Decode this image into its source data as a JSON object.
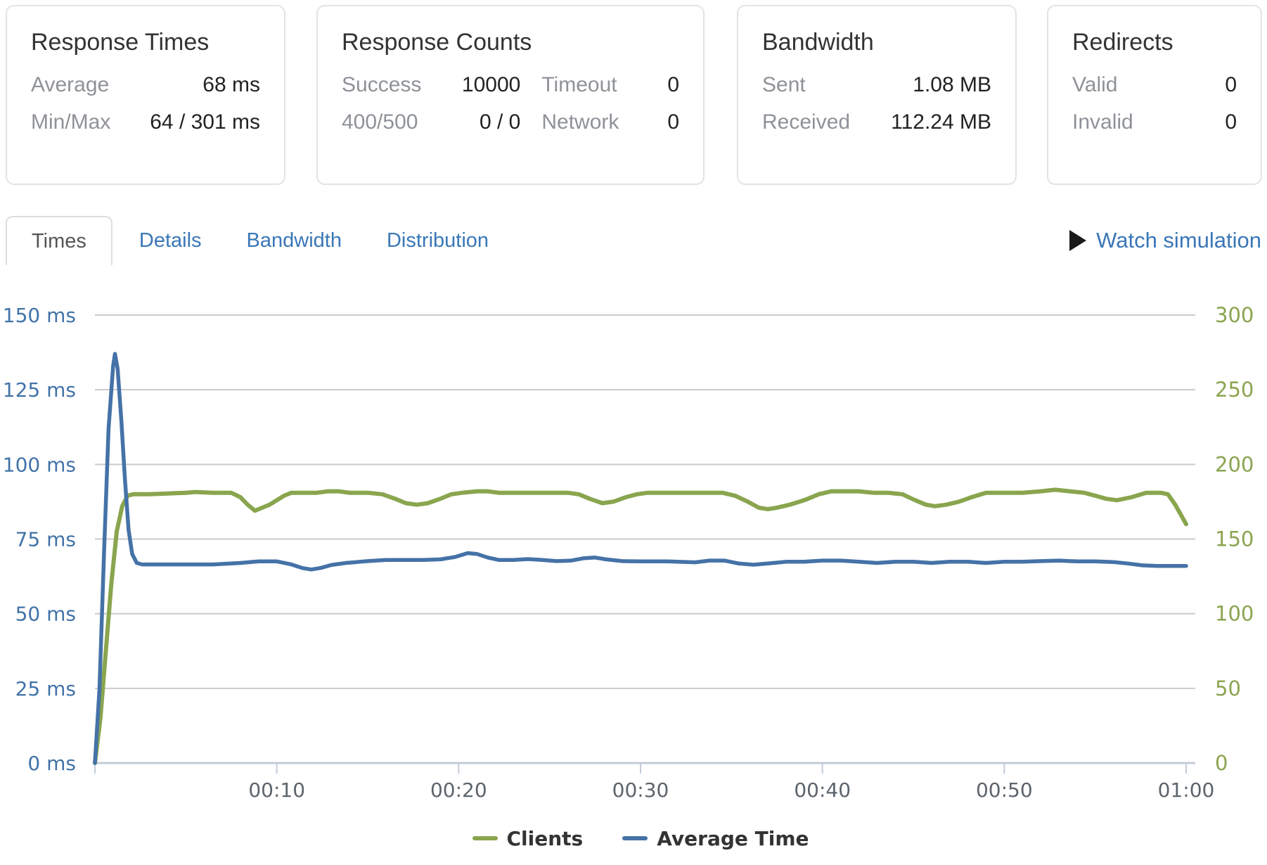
{
  "cards": [
    {
      "title": "Response Times",
      "rows": [
        [
          "Average",
          "68 ms"
        ],
        [
          "Min/Max",
          "64 / 301 ms"
        ]
      ]
    },
    {
      "title": "Response Counts",
      "left_rows": [
        [
          "Success",
          "10000"
        ],
        [
          "400/500",
          "0 / 0"
        ]
      ],
      "right_rows": [
        [
          "Timeout",
          "0"
        ],
        [
          "Network",
          "0"
        ]
      ]
    },
    {
      "title": "Bandwidth",
      "rows": [
        [
          "Sent",
          "1.08 MB"
        ],
        [
          "Received",
          "112.24 MB"
        ]
      ]
    },
    {
      "title": "Redirects",
      "rows": [
        [
          "Valid",
          "0"
        ],
        [
          "Invalid",
          "0"
        ]
      ]
    }
  ],
  "tabs": {
    "active": "Times",
    "items": [
      "Times",
      "Details",
      "Bandwidth",
      "Distribution"
    ],
    "watch_label": "Watch simulation"
  },
  "chart_data": {
    "type": "line",
    "x_range": [
      0,
      60
    ],
    "x_ticks": [
      {
        "minute": 10,
        "label": "00:10"
      },
      {
        "minute": 20,
        "label": "00:20"
      },
      {
        "minute": 30,
        "label": "00:30"
      },
      {
        "minute": 40,
        "label": "00:40"
      },
      {
        "minute": 50,
        "label": "00:50"
      },
      {
        "minute": 60,
        "label": "01:00"
      }
    ],
    "y_left": {
      "max": 150,
      "ticks": [
        0,
        25,
        50,
        75,
        100,
        125,
        150
      ],
      "suffix": " ms",
      "color": "#4273a8"
    },
    "y_right": {
      "max": 300,
      "ticks": [
        0,
        50,
        100,
        150,
        200,
        250,
        300
      ],
      "color": "#8ba450"
    },
    "grid_color": "#cbcbcb",
    "axis_color": "#c2ccd8",
    "x_label_color": "#5d646c",
    "legend_position": "bottom-center",
    "series": [
      {
        "name": "Clients",
        "color": "#89a54e",
        "axis": "right",
        "width": 6,
        "points": [
          [
            0,
            0
          ],
          [
            0.3,
            30
          ],
          [
            0.6,
            75
          ],
          [
            0.9,
            120
          ],
          [
            1.2,
            155
          ],
          [
            1.5,
            172
          ],
          [
            1.8,
            179
          ],
          [
            2.1,
            180
          ],
          [
            3,
            180
          ],
          [
            4,
            180.5
          ],
          [
            5,
            181
          ],
          [
            5.5,
            181.5
          ],
          [
            6.5,
            181
          ],
          [
            7.5,
            181
          ],
          [
            8,
            178
          ],
          [
            8.4,
            173
          ],
          [
            8.8,
            169
          ],
          [
            9.2,
            171
          ],
          [
            9.6,
            173
          ],
          [
            10,
            176
          ],
          [
            10.4,
            179
          ],
          [
            10.8,
            181
          ],
          [
            11.5,
            181
          ],
          [
            12.2,
            181
          ],
          [
            12.8,
            182
          ],
          [
            13.4,
            182
          ],
          [
            14,
            181
          ],
          [
            15,
            181
          ],
          [
            15.8,
            180
          ],
          [
            16.5,
            177
          ],
          [
            17.1,
            174
          ],
          [
            17.7,
            173
          ],
          [
            18.3,
            174
          ],
          [
            19,
            177
          ],
          [
            19.6,
            180
          ],
          [
            20.2,
            181
          ],
          [
            21,
            182
          ],
          [
            21.6,
            182
          ],
          [
            22.2,
            181
          ],
          [
            23,
            181
          ],
          [
            24,
            181
          ],
          [
            25,
            181
          ],
          [
            26,
            181
          ],
          [
            26.6,
            180
          ],
          [
            27.2,
            177
          ],
          [
            27.9,
            174
          ],
          [
            28.5,
            175
          ],
          [
            29.2,
            178
          ],
          [
            29.8,
            180
          ],
          [
            30.4,
            181
          ],
          [
            31.5,
            181
          ],
          [
            33,
            181
          ],
          [
            34.5,
            181
          ],
          [
            35.2,
            179
          ],
          [
            35.9,
            175
          ],
          [
            36.5,
            171
          ],
          [
            37,
            170
          ],
          [
            37.5,
            171
          ],
          [
            38.2,
            173
          ],
          [
            39,
            176
          ],
          [
            39.8,
            180
          ],
          [
            40.5,
            182
          ],
          [
            41.2,
            182
          ],
          [
            42,
            182
          ],
          [
            42.8,
            181
          ],
          [
            43.6,
            181
          ],
          [
            44.4,
            180
          ],
          [
            45.1,
            176
          ],
          [
            45.7,
            173
          ],
          [
            46.2,
            172
          ],
          [
            46.8,
            173
          ],
          [
            47.5,
            175
          ],
          [
            48.2,
            178
          ],
          [
            49,
            181
          ],
          [
            50,
            181
          ],
          [
            51,
            181
          ],
          [
            52,
            182
          ],
          [
            52.8,
            183
          ],
          [
            53.6,
            182
          ],
          [
            54.4,
            181
          ],
          [
            55,
            179
          ],
          [
            55.6,
            177
          ],
          [
            56.2,
            176
          ],
          [
            57,
            178
          ],
          [
            57.8,
            181
          ],
          [
            58.6,
            181
          ],
          [
            59,
            180
          ],
          [
            59.4,
            173
          ],
          [
            60,
            160
          ]
        ]
      },
      {
        "name": "Average Time",
        "color": "#4572a7",
        "axis": "left",
        "width": 5.5,
        "points": [
          [
            0,
            0
          ],
          [
            0.25,
            25
          ],
          [
            0.5,
            70
          ],
          [
            0.75,
            112
          ],
          [
            1.0,
            133
          ],
          [
            1.1,
            137
          ],
          [
            1.25,
            132
          ],
          [
            1.45,
            115
          ],
          [
            1.65,
            95
          ],
          [
            1.85,
            78
          ],
          [
            2.05,
            70
          ],
          [
            2.3,
            67
          ],
          [
            2.6,
            66.5
          ],
          [
            3.5,
            66.5
          ],
          [
            5,
            66.5
          ],
          [
            6.5,
            66.5
          ],
          [
            8,
            67
          ],
          [
            9,
            67.5
          ],
          [
            10,
            67.5
          ],
          [
            10.8,
            66.5
          ],
          [
            11.4,
            65.3
          ],
          [
            11.9,
            64.8
          ],
          [
            12.4,
            65.3
          ],
          [
            13,
            66.3
          ],
          [
            13.8,
            67
          ],
          [
            15,
            67.6
          ],
          [
            16,
            68
          ],
          [
            17,
            68
          ],
          [
            18,
            68
          ],
          [
            19,
            68.2
          ],
          [
            19.8,
            69
          ],
          [
            20.5,
            70.3
          ],
          [
            21,
            70
          ],
          [
            21.6,
            68.8
          ],
          [
            22.2,
            68
          ],
          [
            23,
            68
          ],
          [
            23.8,
            68.3
          ],
          [
            24.6,
            68
          ],
          [
            25.4,
            67.6
          ],
          [
            26.2,
            67.8
          ],
          [
            26.9,
            68.6
          ],
          [
            27.5,
            68.8
          ],
          [
            28.1,
            68.2
          ],
          [
            29,
            67.6
          ],
          [
            30,
            67.5
          ],
          [
            31.5,
            67.5
          ],
          [
            33,
            67.2
          ],
          [
            33.8,
            67.8
          ],
          [
            34.6,
            67.8
          ],
          [
            35.4,
            66.8
          ],
          [
            36.2,
            66.4
          ],
          [
            37,
            66.8
          ],
          [
            38,
            67.4
          ],
          [
            39,
            67.4
          ],
          [
            40,
            67.8
          ],
          [
            41,
            67.8
          ],
          [
            42,
            67.4
          ],
          [
            43,
            67
          ],
          [
            44,
            67.4
          ],
          [
            45,
            67.4
          ],
          [
            46,
            67
          ],
          [
            47,
            67.4
          ],
          [
            48,
            67.4
          ],
          [
            49,
            67
          ],
          [
            50,
            67.4
          ],
          [
            51,
            67.4
          ],
          [
            52,
            67.6
          ],
          [
            53,
            67.8
          ],
          [
            54,
            67.5
          ],
          [
            55,
            67.5
          ],
          [
            56,
            67.3
          ],
          [
            56.8,
            66.8
          ],
          [
            57.6,
            66.2
          ],
          [
            58.4,
            66
          ],
          [
            60,
            66
          ]
        ]
      }
    ]
  }
}
